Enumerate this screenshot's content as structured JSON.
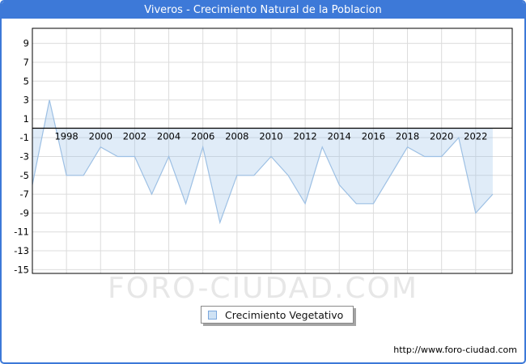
{
  "window": {
    "title": "Viveros - Crecimiento Natural de la Poblacion"
  },
  "chart_data": {
    "type": "area",
    "title": "Viveros - Crecimiento Natural de la Poblacion",
    "x": [
      1996,
      1997,
      1998,
      1999,
      2000,
      2001,
      2002,
      2003,
      2004,
      2005,
      2006,
      2007,
      2008,
      2009,
      2010,
      2011,
      2012,
      2013,
      2014,
      2015,
      2016,
      2017,
      2018,
      2019,
      2020,
      2021,
      2022,
      2023
    ],
    "series": [
      {
        "name": "Crecimiento Vegetativo",
        "values": [
          -6,
          3,
          -5,
          -5,
          -2,
          -3,
          -3,
          -7,
          -3,
          -8,
          -2,
          -10,
          -5,
          -5,
          -3,
          -5,
          -8,
          -2,
          -6,
          -8,
          -8,
          -5,
          -2,
          -3,
          -3,
          -1,
          -9,
          -7
        ]
      }
    ],
    "ylim": [
      -15.4,
      10.6
    ],
    "yticks": [
      9,
      7,
      5,
      3,
      1,
      -1,
      -3,
      -5,
      -7,
      -9,
      -11,
      -13,
      -15
    ],
    "xticks": [
      1998,
      2000,
      2002,
      2004,
      2006,
      2008,
      2010,
      2012,
      2014,
      2016,
      2018,
      2020,
      2022
    ],
    "xlabel": "",
    "ylabel": "",
    "grid": true,
    "legend_position": "bottom-center",
    "colors": {
      "line": "#9dc0e4",
      "fill": "rgba(158,195,232,0.32)",
      "grid": "#dcdcdc",
      "axis": "#000000",
      "accent_blue": "#3d79d8",
      "watermark": "#e7e7e7"
    }
  },
  "legend": {
    "label": "Crecimiento Vegetativo"
  },
  "watermark": "FORO-CIUDAD.COM",
  "footer": {
    "url": "http://www.foro-ciudad.com"
  }
}
